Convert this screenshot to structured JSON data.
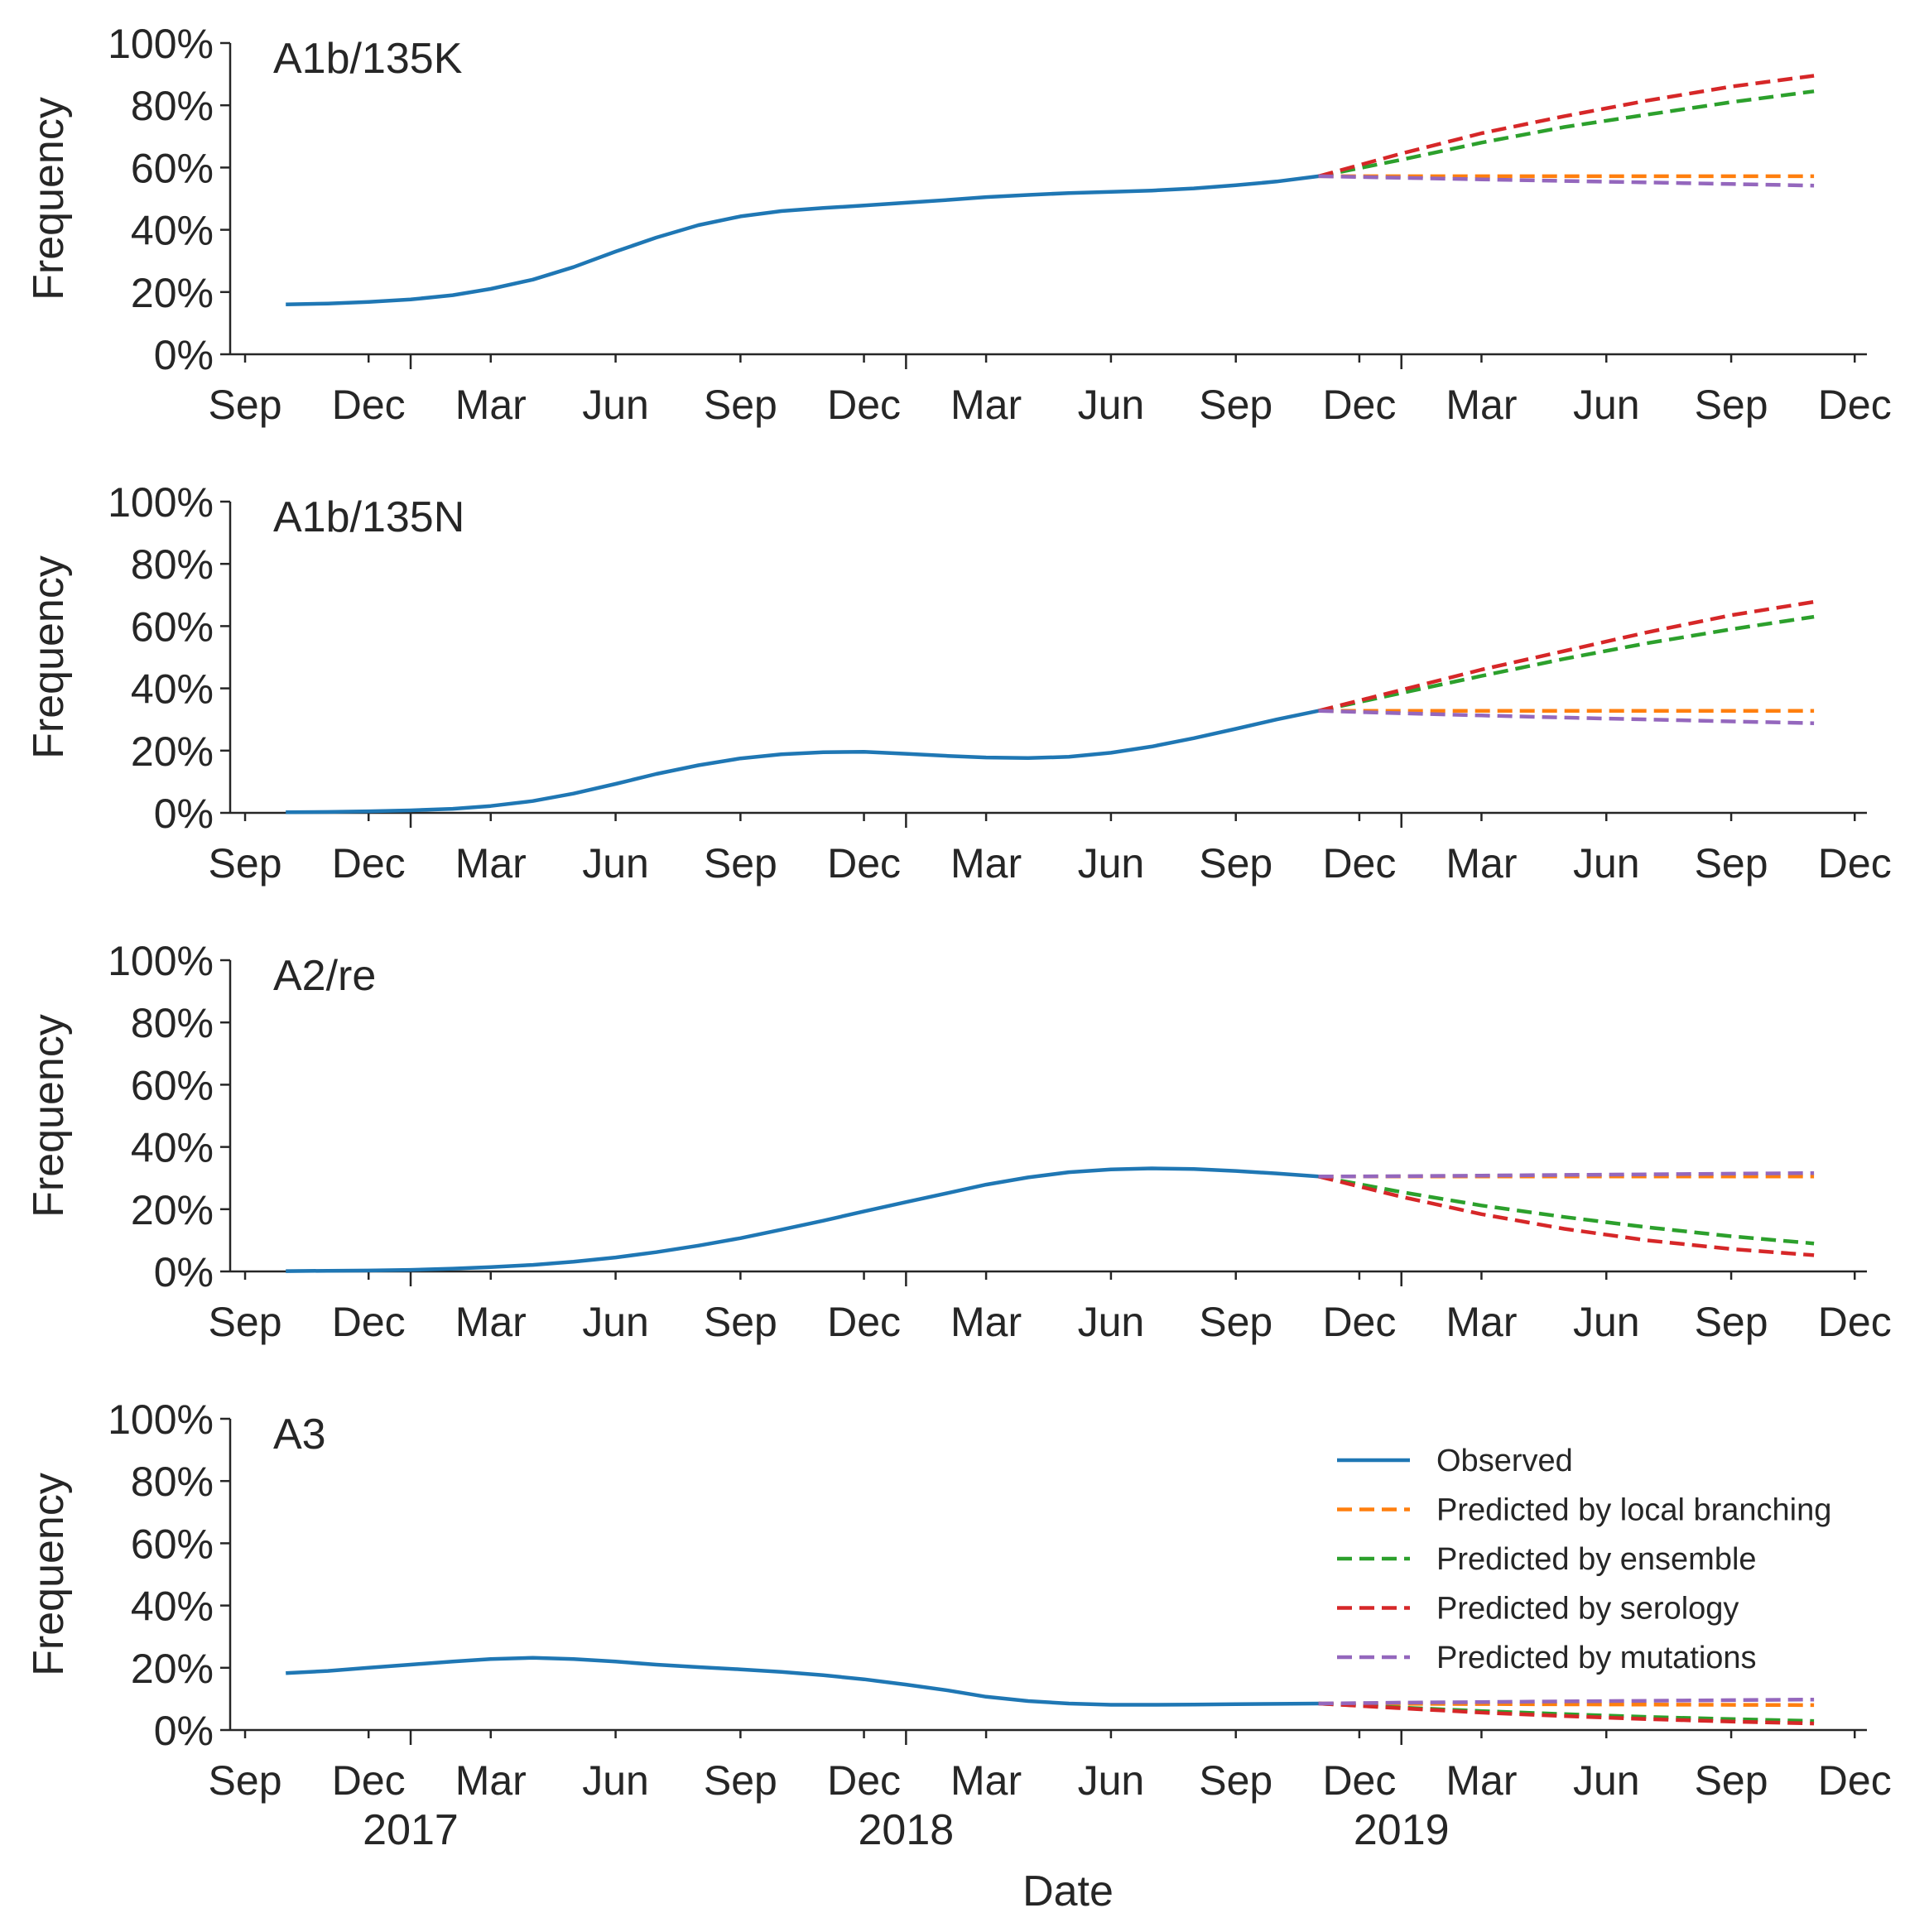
{
  "chart_data": {
    "type": "line",
    "xlabel": "Date",
    "ylabel": "Frequency",
    "ylim": [
      0,
      1
    ],
    "xlim": [
      "2016-08-21",
      "2019-12-10"
    ],
    "y_ticks": [
      "0%",
      "20%",
      "40%",
      "60%",
      "80%",
      "100%"
    ],
    "x_ticks": [
      {
        "date": "2016-09-01",
        "label": "Sep"
      },
      {
        "date": "2016-12-01",
        "label": "Dec"
      },
      {
        "date": "2017-03-01",
        "label": "Mar"
      },
      {
        "date": "2017-06-01",
        "label": "Jun"
      },
      {
        "date": "2017-09-01",
        "label": "Sep"
      },
      {
        "date": "2017-12-01",
        "label": "Dec"
      },
      {
        "date": "2018-03-01",
        "label": "Mar"
      },
      {
        "date": "2018-06-01",
        "label": "Jun"
      },
      {
        "date": "2018-09-01",
        "label": "Sep"
      },
      {
        "date": "2018-12-01",
        "label": "Dec"
      },
      {
        "date": "2019-03-01",
        "label": "Mar"
      },
      {
        "date": "2019-06-01",
        "label": "Jun"
      },
      {
        "date": "2019-09-01",
        "label": "Sep"
      },
      {
        "date": "2019-12-01",
        "label": "Dec"
      }
    ],
    "year_ticks": [
      {
        "date": "2017-01-01",
        "label": "2017"
      },
      {
        "date": "2018-01-01",
        "label": "2018"
      },
      {
        "date": "2019-01-01",
        "label": "2019"
      }
    ],
    "grid": false,
    "legend": {
      "placement": "top-right of bottom panel",
      "entries": [
        {
          "series": "observed",
          "label": "Observed",
          "color": "#1f77b4",
          "style": "solid"
        },
        {
          "series": "local_branching",
          "label": "Predicted by local branching",
          "color": "#ff7f0e",
          "style": "dashed"
        },
        {
          "series": "ensemble",
          "label": "Predicted by ensemble",
          "color": "#2ca02c",
          "style": "dashed"
        },
        {
          "series": "serology",
          "label": "Predicted by serology",
          "color": "#d62728",
          "style": "dashed"
        },
        {
          "series": "mutations",
          "label": "Predicted by mutations",
          "color": "#9467bd",
          "style": "dashed"
        }
      ]
    },
    "panels": [
      {
        "title": "A1b/135K",
        "series": [
          {
            "key": "observed",
            "color": "#1f77b4",
            "dashed": false,
            "x": [
              "2016-10-01",
              "2016-11-01",
              "2016-12-01",
              "2017-01-01",
              "2017-02-01",
              "2017-03-01",
              "2017-04-01",
              "2017-05-01",
              "2017-06-01",
              "2017-07-01",
              "2017-08-01",
              "2017-09-01",
              "2017-10-01",
              "2017-11-01",
              "2017-12-01",
              "2018-01-01",
              "2018-02-01",
              "2018-03-01",
              "2018-04-01",
              "2018-05-01",
              "2018-06-01",
              "2018-07-01",
              "2018-08-01",
              "2018-09-01",
              "2018-10-01",
              "2018-11-01"
            ],
            "y": [
              0.16,
              0.163,
              0.168,
              0.176,
              0.19,
              0.21,
              0.24,
              0.28,
              0.33,
              0.375,
              0.415,
              0.443,
              0.46,
              0.47,
              0.478,
              0.487,
              0.496,
              0.505,
              0.512,
              0.518,
              0.522,
              0.526,
              0.533,
              0.543,
              0.555,
              0.572
            ]
          },
          {
            "key": "local_branching",
            "color": "#ff7f0e",
            "dashed": true,
            "x": [
              "2018-11-01",
              "2019-11-01"
            ],
            "y": [
              0.572,
              0.572
            ]
          },
          {
            "key": "ensemble",
            "color": "#2ca02c",
            "dashed": true,
            "x": [
              "2018-11-01",
              "2019-01-01",
              "2019-03-01",
              "2019-05-01",
              "2019-07-01",
              "2019-09-01",
              "2019-11-01"
            ],
            "y": [
              0.572,
              0.625,
              0.68,
              0.73,
              0.77,
              0.81,
              0.845
            ]
          },
          {
            "key": "serology",
            "color": "#d62728",
            "dashed": true,
            "x": [
              "2018-11-01",
              "2019-01-01",
              "2019-03-01",
              "2019-05-01",
              "2019-07-01",
              "2019-09-01",
              "2019-11-01"
            ],
            "y": [
              0.572,
              0.645,
              0.71,
              0.765,
              0.815,
              0.86,
              0.895
            ]
          },
          {
            "key": "mutations",
            "color": "#9467bd",
            "dashed": true,
            "x": [
              "2018-11-01",
              "2019-01-01",
              "2019-03-01",
              "2019-05-01",
              "2019-07-01",
              "2019-09-01",
              "2019-11-01"
            ],
            "y": [
              0.572,
              0.567,
              0.562,
              0.557,
              0.552,
              0.547,
              0.542
            ]
          }
        ]
      },
      {
        "title": "A1b/135N",
        "series": [
          {
            "key": "observed",
            "color": "#1f77b4",
            "dashed": false,
            "x": [
              "2016-10-01",
              "2016-11-01",
              "2016-12-01",
              "2017-01-01",
              "2017-02-01",
              "2017-03-01",
              "2017-04-01",
              "2017-05-01",
              "2017-06-01",
              "2017-07-01",
              "2017-08-01",
              "2017-09-01",
              "2017-10-01",
              "2017-11-01",
              "2017-12-01",
              "2018-01-01",
              "2018-02-01",
              "2018-03-01",
              "2018-04-01",
              "2018-05-01",
              "2018-06-01",
              "2018-07-01",
              "2018-08-01",
              "2018-09-01",
              "2018-10-01",
              "2018-11-01"
            ],
            "y": [
              0.002,
              0.003,
              0.005,
              0.008,
              0.013,
              0.022,
              0.038,
              0.062,
              0.093,
              0.125,
              0.153,
              0.175,
              0.188,
              0.195,
              0.196,
              0.19,
              0.183,
              0.178,
              0.176,
              0.18,
              0.193,
              0.213,
              0.24,
              0.27,
              0.3,
              0.328
            ]
          },
          {
            "key": "local_branching",
            "color": "#ff7f0e",
            "dashed": true,
            "x": [
              "2018-11-01",
              "2019-11-01"
            ],
            "y": [
              0.328,
              0.328
            ]
          },
          {
            "key": "ensemble",
            "color": "#2ca02c",
            "dashed": true,
            "x": [
              "2018-11-01",
              "2019-01-01",
              "2019-03-01",
              "2019-05-01",
              "2019-07-01",
              "2019-09-01",
              "2019-11-01"
            ],
            "y": [
              0.328,
              0.385,
              0.44,
              0.495,
              0.545,
              0.59,
              0.63
            ]
          },
          {
            "key": "serology",
            "color": "#d62728",
            "dashed": true,
            "x": [
              "2018-11-01",
              "2019-01-01",
              "2019-03-01",
              "2019-05-01",
              "2019-07-01",
              "2019-09-01",
              "2019-11-01"
            ],
            "y": [
              0.328,
              0.395,
              0.46,
              0.52,
              0.58,
              0.635,
              0.678
            ]
          },
          {
            "key": "mutations",
            "color": "#9467bd",
            "dashed": true,
            "x": [
              "2018-11-01",
              "2019-01-01",
              "2019-03-01",
              "2019-05-01",
              "2019-07-01",
              "2019-09-01",
              "2019-11-01"
            ],
            "y": [
              0.328,
              0.32,
              0.313,
              0.306,
              0.3,
              0.294,
              0.288
            ]
          }
        ]
      },
      {
        "title": "A2/re",
        "series": [
          {
            "key": "observed",
            "color": "#1f77b4",
            "dashed": false,
            "x": [
              "2016-10-01",
              "2016-11-01",
              "2016-12-01",
              "2017-01-01",
              "2017-02-01",
              "2017-03-01",
              "2017-04-01",
              "2017-05-01",
              "2017-06-01",
              "2017-07-01",
              "2017-08-01",
              "2017-09-01",
              "2017-10-01",
              "2017-11-01",
              "2017-12-01",
              "2018-01-01",
              "2018-02-01",
              "2018-03-01",
              "2018-04-01",
              "2018-05-01",
              "2018-06-01",
              "2018-07-01",
              "2018-08-01",
              "2018-09-01",
              "2018-10-01",
              "2018-11-01"
            ],
            "y": [
              0.001,
              0.002,
              0.003,
              0.005,
              0.009,
              0.014,
              0.021,
              0.031,
              0.045,
              0.062,
              0.083,
              0.107,
              0.134,
              0.163,
              0.193,
              0.223,
              0.252,
              0.279,
              0.302,
              0.319,
              0.328,
              0.331,
              0.329,
              0.323,
              0.315,
              0.305
            ]
          },
          {
            "key": "local_branching",
            "color": "#ff7f0e",
            "dashed": true,
            "x": [
              "2018-11-01",
              "2019-11-01"
            ],
            "y": [
              0.305,
              0.305
            ]
          },
          {
            "key": "ensemble",
            "color": "#2ca02c",
            "dashed": true,
            "x": [
              "2018-11-01",
              "2019-01-01",
              "2019-03-01",
              "2019-05-01",
              "2019-07-01",
              "2019-09-01",
              "2019-11-01"
            ],
            "y": [
              0.305,
              0.255,
              0.212,
              0.175,
              0.142,
              0.113,
              0.09
            ]
          },
          {
            "key": "serology",
            "color": "#d62728",
            "dashed": true,
            "x": [
              "2018-11-01",
              "2019-01-01",
              "2019-03-01",
              "2019-05-01",
              "2019-07-01",
              "2019-09-01",
              "2019-11-01"
            ],
            "y": [
              0.305,
              0.24,
              0.184,
              0.137,
              0.1,
              0.072,
              0.052
            ]
          },
          {
            "key": "mutations",
            "color": "#9467bd",
            "dashed": true,
            "x": [
              "2018-11-01",
              "2019-01-01",
              "2019-03-01",
              "2019-05-01",
              "2019-07-01",
              "2019-09-01",
              "2019-11-01"
            ],
            "y": [
              0.305,
              0.306,
              0.308,
              0.31,
              0.312,
              0.314,
              0.316
            ]
          }
        ]
      },
      {
        "title": "A3",
        "series": [
          {
            "key": "observed",
            "color": "#1f77b4",
            "dashed": false,
            "x": [
              "2016-10-01",
              "2016-11-01",
              "2016-12-01",
              "2017-01-01",
              "2017-02-01",
              "2017-03-01",
              "2017-04-01",
              "2017-05-01",
              "2017-06-01",
              "2017-07-01",
              "2017-08-01",
              "2017-09-01",
              "2017-10-01",
              "2017-11-01",
              "2017-12-01",
              "2018-01-01",
              "2018-02-01",
              "2018-03-01",
              "2018-04-01",
              "2018-05-01",
              "2018-06-01",
              "2018-07-01",
              "2018-08-01",
              "2018-09-01",
              "2018-10-01",
              "2018-11-01"
            ],
            "y": [
              0.183,
              0.19,
              0.2,
              0.21,
              0.22,
              0.228,
              0.232,
              0.228,
              0.22,
              0.21,
              0.202,
              0.195,
              0.187,
              0.176,
              0.163,
              0.146,
              0.127,
              0.107,
              0.093,
              0.085,
              0.081,
              0.081,
              0.082,
              0.083,
              0.084,
              0.085
            ]
          },
          {
            "key": "local_branching",
            "color": "#ff7f0e",
            "dashed": true,
            "x": [
              "2018-11-01",
              "2019-11-01"
            ],
            "y": [
              0.085,
              0.08
            ]
          },
          {
            "key": "ensemble",
            "color": "#2ca02c",
            "dashed": true,
            "x": [
              "2018-11-01",
              "2019-01-01",
              "2019-03-01",
              "2019-05-01",
              "2019-07-01",
              "2019-09-01",
              "2019-11-01"
            ],
            "y": [
              0.085,
              0.072,
              0.061,
              0.051,
              0.042,
              0.035,
              0.029
            ]
          },
          {
            "key": "serology",
            "color": "#d62728",
            "dashed": true,
            "x": [
              "2018-11-01",
              "2019-01-01",
              "2019-03-01",
              "2019-05-01",
              "2019-07-01",
              "2019-09-01",
              "2019-11-01"
            ],
            "y": [
              0.085,
              0.07,
              0.056,
              0.045,
              0.035,
              0.027,
              0.021
            ]
          },
          {
            "key": "mutations",
            "color": "#9467bd",
            "dashed": true,
            "x": [
              "2018-11-01",
              "2019-01-01",
              "2019-03-01",
              "2019-05-01",
              "2019-07-01",
              "2019-09-01",
              "2019-11-01"
            ],
            "y": [
              0.085,
              0.088,
              0.09,
              0.092,
              0.094,
              0.096,
              0.098
            ]
          }
        ]
      }
    ]
  }
}
